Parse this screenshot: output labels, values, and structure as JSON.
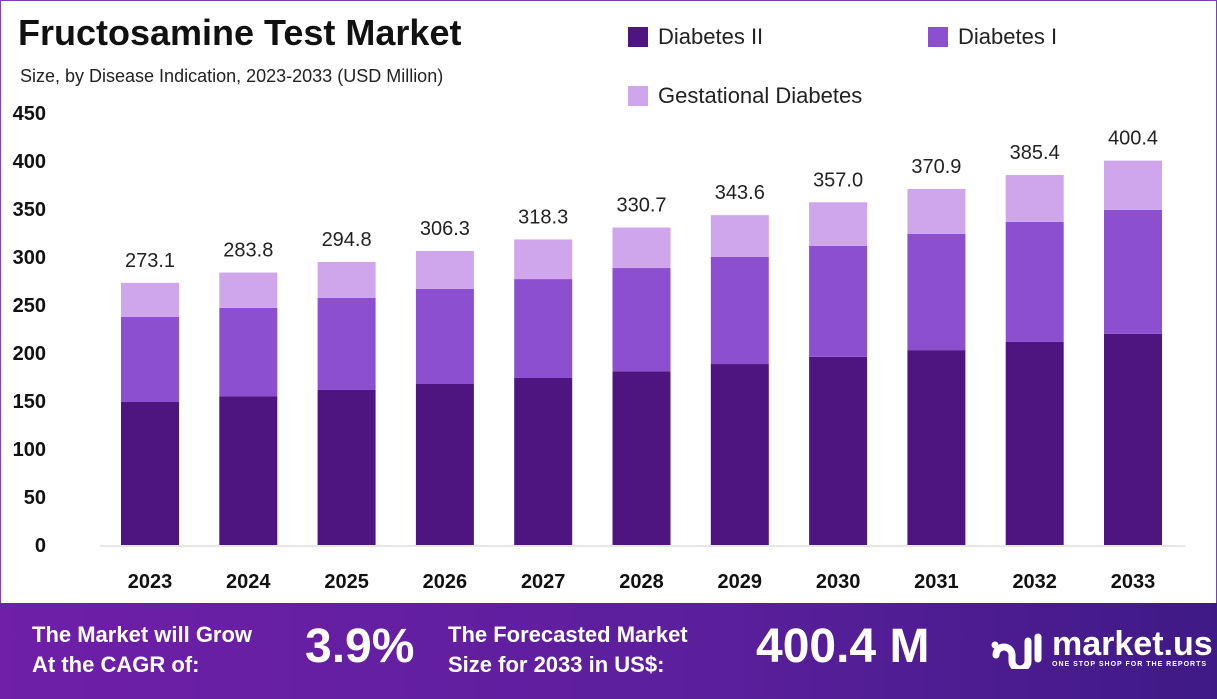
{
  "chart_data": {
    "type": "bar",
    "stacked": true,
    "title": "Fructosamine Test Market",
    "subtitle": "Size, by Disease Indication, 2023-2033 (USD Million)",
    "categories": [
      "2023",
      "2024",
      "2025",
      "2026",
      "2027",
      "2028",
      "2029",
      "2030",
      "2031",
      "2032",
      "2033"
    ],
    "series": [
      {
        "name": "Diabetes II",
        "color": "#4e1580",
        "values": [
          149,
          155,
          161.5,
          167.7,
          174,
          181,
          188.5,
          196,
          203,
          211.5,
          220
        ]
      },
      {
        "name": "Diabetes I",
        "color": "#8b4fcf",
        "values": [
          88.5,
          92,
          95.8,
          99,
          103,
          107.5,
          111.5,
          115.5,
          121,
          125,
          129
        ]
      },
      {
        "name": "Gestational Diabetes",
        "color": "#cfa6ec",
        "values": [
          35.6,
          36.8,
          37.5,
          39.6,
          41.3,
          42.2,
          43.6,
          45.5,
          46.9,
          48.9,
          51.4
        ]
      }
    ],
    "totals": [
      "273.1",
      "283.8",
      "294.8",
      "306.3",
      "318.3",
      "330.7",
      "343.6",
      "357.0",
      "370.9",
      "385.4",
      "400.4"
    ],
    "ylim": [
      0,
      450
    ],
    "yticks": [
      0,
      50,
      100,
      150,
      200,
      250,
      300,
      350,
      400,
      450
    ],
    "grid": false,
    "legend_placement": "top-right"
  },
  "footer": {
    "cagr_label_1": "The Market will Grow",
    "cagr_label_2": "At the CAGR of:",
    "cagr_value": "3.9%",
    "forecast_label_1": "The Forecasted Market",
    "forecast_label_2": "Size for 2033 in US$:",
    "forecast_value": "400.4 M",
    "logo_name": "market.us",
    "logo_tagline": "ONE STOP SHOP FOR THE REPORTS"
  }
}
